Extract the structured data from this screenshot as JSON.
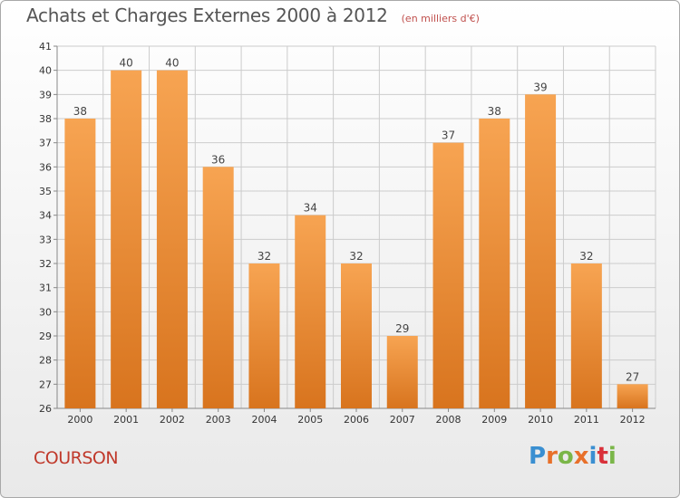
{
  "header": {
    "title": "Achats et Charges Externes 2000 à 2012",
    "subtitle": "(en milliers d'€)"
  },
  "footer": {
    "commune": "COURSON",
    "logo_text": "Proxiti",
    "logo_colors": [
      "#3a8fd1",
      "#e8702a",
      "#7ab648",
      "#e8702a",
      "#3a8fd1",
      "#d9303a",
      "#7ab648"
    ]
  },
  "chart_data": {
    "type": "bar",
    "categories": [
      "2000",
      "2001",
      "2002",
      "2003",
      "2004",
      "2005",
      "2006",
      "2007",
      "2008",
      "2009",
      "2010",
      "2011",
      "2012"
    ],
    "values": [
      38,
      40,
      40,
      36,
      32,
      34,
      32,
      29,
      37,
      38,
      39,
      32,
      27
    ],
    "ylim": [
      26,
      41
    ],
    "yticks": [
      26,
      27,
      28,
      29,
      30,
      31,
      32,
      33,
      34,
      35,
      36,
      37,
      38,
      39,
      40,
      41
    ],
    "grid": true,
    "bar_color_top": "#f7a452",
    "bar_color_bottom": "#d8741e",
    "grid_color": "#cccccc",
    "axis_text_color": "#333333"
  }
}
